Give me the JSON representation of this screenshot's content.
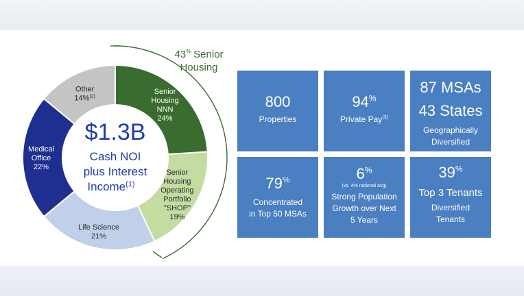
{
  "chart_data": {
    "type": "pie",
    "style": "donut",
    "center_label": {
      "value": "$1.3B",
      "line1": "Cash NOI",
      "line2": "plus Interest",
      "line3": "Income",
      "footnote": "(1)"
    },
    "slices": [
      {
        "name": "Senior Housing NNN",
        "label_lines": [
          "Senior",
          "Housing",
          "NNN"
        ],
        "pct_text": "24%",
        "value": 24,
        "color": "#3a6b2f",
        "text_color": "#ffffff"
      },
      {
        "name": "Senior Housing Operating Portfolio \"SHOP\"",
        "label_lines": [
          "Senior",
          "Housing",
          "Operating",
          "Portfolio",
          "\"SHOP\""
        ],
        "pct_text": "19%",
        "value": 19,
        "color": "#c4dba2",
        "text_color": "#2a2a2a"
      },
      {
        "name": "Life Science",
        "label_lines": [
          "Life Science"
        ],
        "pct_text": "21%",
        "value": 21,
        "color": "#bfd0e8",
        "text_color": "#2a2a2a"
      },
      {
        "name": "Medical Office",
        "label_lines": [
          "Medical",
          "Office"
        ],
        "pct_text": "22%",
        "value": 22,
        "color": "#1f2f8f",
        "text_color": "#ffffff"
      },
      {
        "name": "Other",
        "label_lines": [
          "Other"
        ],
        "pct_text": "14%",
        "pct_footnote": "(2)",
        "value": 14,
        "color": "#c4c4c4",
        "text_color": "#2a2a2a"
      }
    ],
    "bracket": {
      "value": "43",
      "unit": "%",
      "line1": "Senior",
      "line2": "Housing",
      "color": "#3a6b2f"
    }
  },
  "colors": {
    "tile": "#4a7fc1",
    "tile_text": "#ffffff",
    "center_text": "#1f3ea8"
  },
  "tiles": [
    {
      "big": "800",
      "small": "Properties"
    },
    {
      "big": "94",
      "big_sup": "%",
      "small": "Private Pay",
      "small_sup": "(3)"
    },
    {
      "big1": "87 MSAs",
      "big2": "43 States",
      "small1": "Geographically",
      "small2": "Diversified"
    },
    {
      "big": "79",
      "big_sup": "%",
      "small1": "Concentrated",
      "small2": "in Top 50 MSAs"
    },
    {
      "big": "6",
      "big_sup": "%",
      "note": "(vs. 4% national avg)",
      "small1": "Strong Population",
      "small2": "Growth over Next",
      "small3": "5 Years"
    },
    {
      "big": "39",
      "big_sup": "%",
      "mid": "Top 3 Tenants",
      "small1": "Diversified",
      "small2": "Tenants"
    }
  ]
}
